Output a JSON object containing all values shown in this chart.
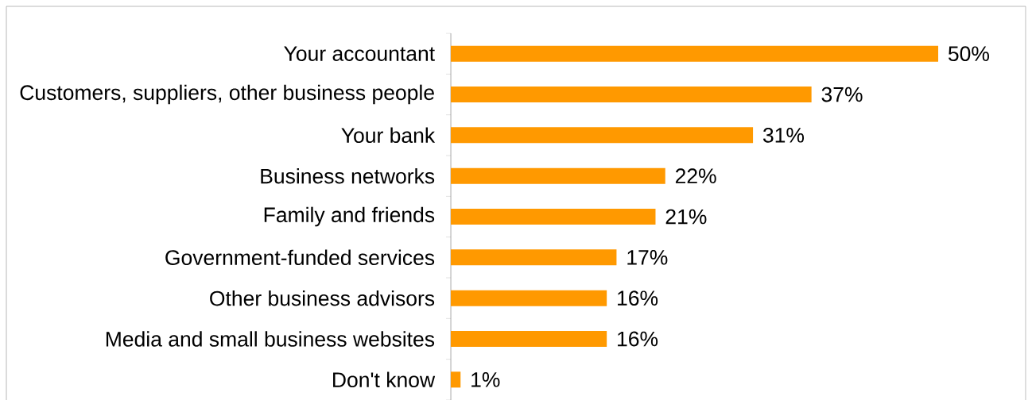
{
  "chart_data": {
    "type": "bar",
    "orientation": "horizontal",
    "categories": [
      "Your accountant",
      "Customers, suppliers, other business people",
      "Your bank",
      "Business networks",
      "Family and friends",
      "Government-funded services",
      "Other business advisors",
      "Media and small business websites",
      "Don't know"
    ],
    "values": [
      50,
      37,
      31,
      22,
      21,
      17,
      16,
      16,
      1
    ],
    "value_labels": [
      "50%",
      "37%",
      "31%",
      "22%",
      "21%",
      "17%",
      "16%",
      "16%",
      "1%"
    ],
    "color": "#ff9900"
  }
}
